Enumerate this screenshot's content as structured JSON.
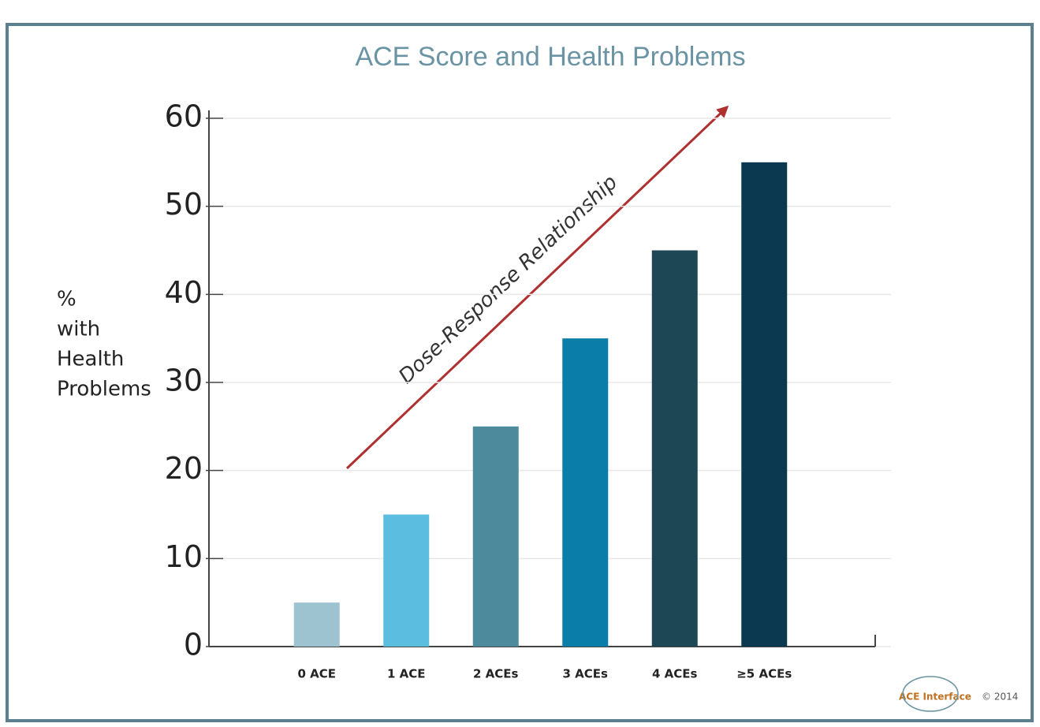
{
  "chart_data": {
    "type": "bar",
    "title": "ACE Score and Health Problems",
    "y_label": [
      "%",
      "with",
      "Health",
      "Problems"
    ],
    "categories": [
      "0 ACE",
      "1 ACE",
      "2 ACEs",
      "3 ACEs",
      "4 ACEs",
      "≥5 ACEs"
    ],
    "values": [
      5,
      15,
      25,
      35,
      45,
      55
    ],
    "colors": [
      "#9ec3d0",
      "#5bbde0",
      "#4d8a9c",
      "#0a7ea8",
      "#1e4756",
      "#0b3a50"
    ],
    "ylim": [
      0,
      60
    ],
    "yticks": [
      0,
      10,
      20,
      30,
      40,
      50,
      60
    ],
    "grid": true,
    "annotation": "Dose-Response Relationship",
    "logo": "ACE Interface",
    "copyright": "© 2014"
  }
}
